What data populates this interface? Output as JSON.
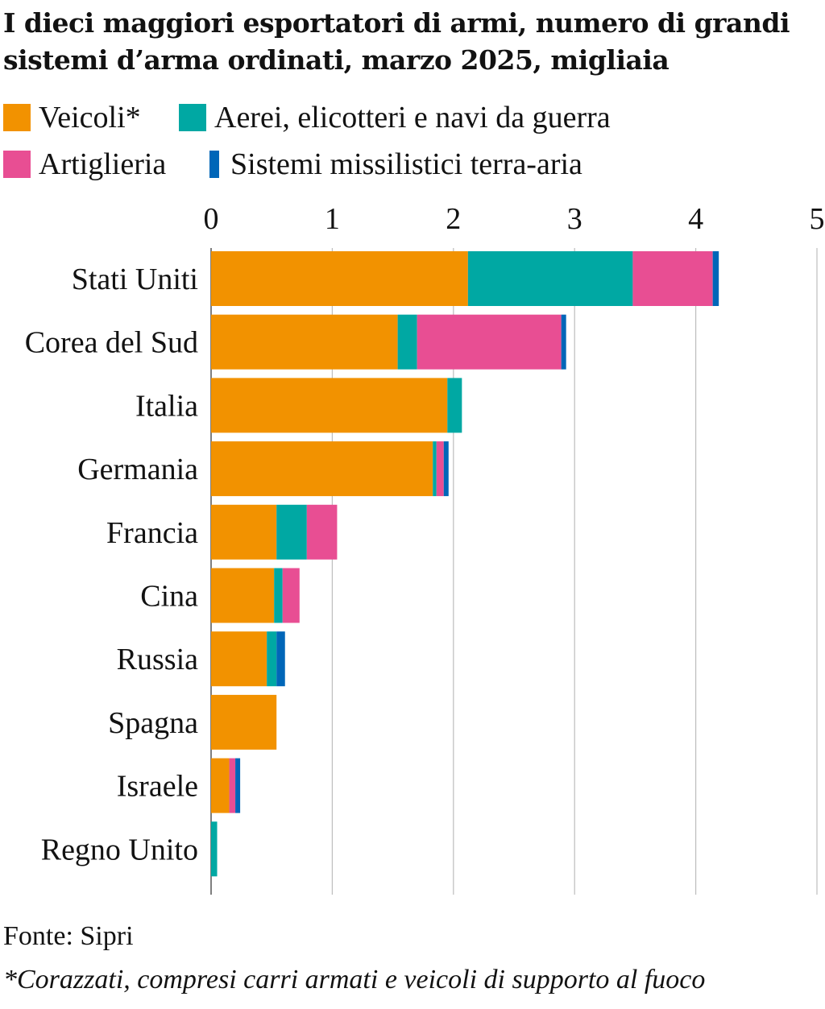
{
  "title": "I dieci maggiori esportatori di armi, numero di grandi sistemi d’arma ordinati, marzo 2025, migliaia",
  "legend": [
    {
      "label": "Veicoli*",
      "color": "#F29200"
    },
    {
      "label": "Aerei, elicotteri e navi da guerra",
      "color": "#00A8A3"
    },
    {
      "label": "Artiglieria",
      "color": "#E84E93"
    },
    {
      "label": "Sistemi missilistici terra-aria",
      "color": "#0066B8"
    }
  ],
  "chart_data": {
    "type": "bar",
    "orientation": "horizontal",
    "stacked": true,
    "title": "I dieci maggiori esportatori di armi, numero di grandi sistemi d’arma ordinati, marzo 2025, migliaia",
    "categories": [
      "Stati Uniti",
      "Corea del Sud",
      "Italia",
      "Germania",
      "Francia",
      "Cina",
      "Russia",
      "Spagna",
      "Israele",
      "Regno Unito"
    ],
    "series": [
      {
        "name": "Veicoli*",
        "color": "#F29200",
        "values": [
          2.12,
          1.54,
          1.95,
          1.83,
          0.54,
          0.52,
          0.46,
          0.54,
          0.15,
          0.0
        ]
      },
      {
        "name": "Aerei, elicotteri e navi da guerra",
        "color": "#00A8A3",
        "values": [
          1.36,
          0.16,
          0.12,
          0.03,
          0.25,
          0.07,
          0.08,
          0.0,
          0.0,
          0.05
        ]
      },
      {
        "name": "Artiglieria",
        "color": "#E84E93",
        "values": [
          0.66,
          1.19,
          0.0,
          0.06,
          0.25,
          0.14,
          0.0,
          0.0,
          0.05,
          0.0
        ]
      },
      {
        "name": "Sistemi missilistici terra-aria",
        "color": "#0066B8",
        "values": [
          0.05,
          0.04,
          0.0,
          0.04,
          0.0,
          0.0,
          0.07,
          0.0,
          0.04,
          0.0
        ]
      }
    ],
    "xlim": [
      0,
      5
    ],
    "xticks": [
      "0",
      "1",
      "2",
      "3",
      "4",
      "5"
    ],
    "grid": true,
    "legend_position": "top"
  },
  "source": "Fonte: Sipri",
  "footnote": "*Corazzati, compresi carri armati e veicoli di supporto al fuoco"
}
